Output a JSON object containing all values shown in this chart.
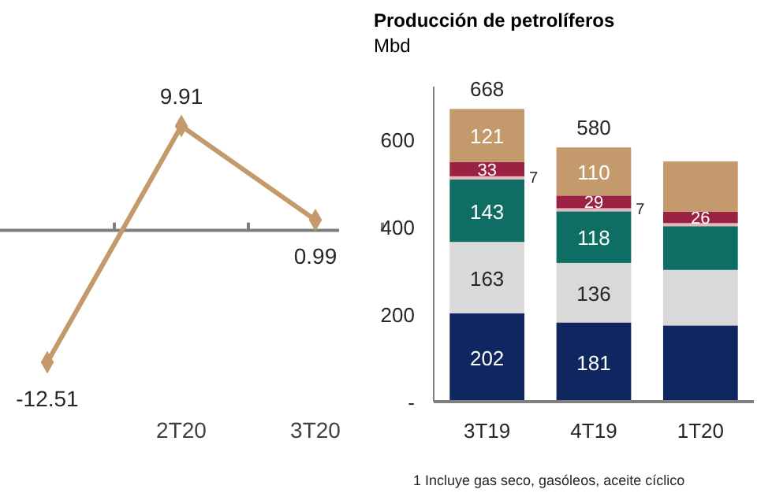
{
  "chart_data": [
    {
      "type": "line",
      "categories": [
        null,
        "2T20",
        "3T20"
      ],
      "marker": "diamond",
      "data_labels": true,
      "series": [
        {
          "color": "#c49a6c",
          "values": [
            -12.51,
            9.91,
            0.99
          ]
        }
      ]
    },
    {
      "type": "bar",
      "stacked": true,
      "title": "Producción de petrolíferos",
      "subtitle": "Mbd",
      "categories": [
        "3T19",
        "4T19",
        "1T20"
      ],
      "ylim": [
        0,
        720
      ],
      "yticks": [
        {
          "value": 0,
          "label": "-"
        },
        200,
        400,
        600
      ],
      "grid": false,
      "series": [
        {
          "color": "#0f2660",
          "values": [
            202,
            181,
            174
          ],
          "value_labels": [
            "202",
            "181",
            null
          ]
        },
        {
          "color": "#d9d9d9",
          "values": [
            163,
            136,
            127
          ],
          "value_labels": [
            "163",
            "136",
            null
          ]
        },
        {
          "color": "#0e6e63",
          "values": [
            143,
            118,
            100
          ],
          "value_labels": [
            "143",
            "118",
            null
          ]
        },
        {
          "color": "#e6b8be",
          "values": [
            7,
            7,
            7
          ],
          "value_labels": [
            "7",
            "7",
            null
          ]
        },
        {
          "color": "#9b2242",
          "values": [
            33,
            29,
            26
          ],
          "value_labels": [
            "33",
            "29",
            "26"
          ]
        },
        {
          "color": "#c49a6c",
          "values": [
            121,
            110,
            115
          ],
          "value_labels": [
            "121",
            "110",
            null
          ]
        }
      ],
      "totals": [
        "668",
        "580",
        null
      ],
      "annotations": [
        "1  Incluye gas seco, gasóleos, aceite cíclico"
      ]
    }
  ]
}
